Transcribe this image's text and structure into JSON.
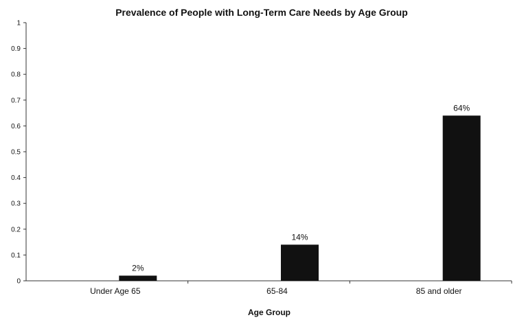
{
  "chart_data": {
    "type": "bar",
    "title": "Prevalence of People with Long-Term Care Needs by Age Group",
    "xlabel": "Age Group",
    "ylabel": "",
    "categories": [
      "Under Age 65",
      "65-84",
      "85 and older"
    ],
    "values": [
      0.02,
      0.14,
      0.64
    ],
    "data_labels": [
      "2%",
      "14%",
      "64%"
    ],
    "ylim": [
      0,
      1
    ],
    "yticks": [
      "0",
      "0.1",
      "0.2",
      "0.3",
      "0.4",
      "0.5",
      "0.6",
      "0.7",
      "0.8",
      "0.9",
      "1"
    ],
    "grid": false,
    "legend": "none",
    "bar_color": "#111111"
  }
}
